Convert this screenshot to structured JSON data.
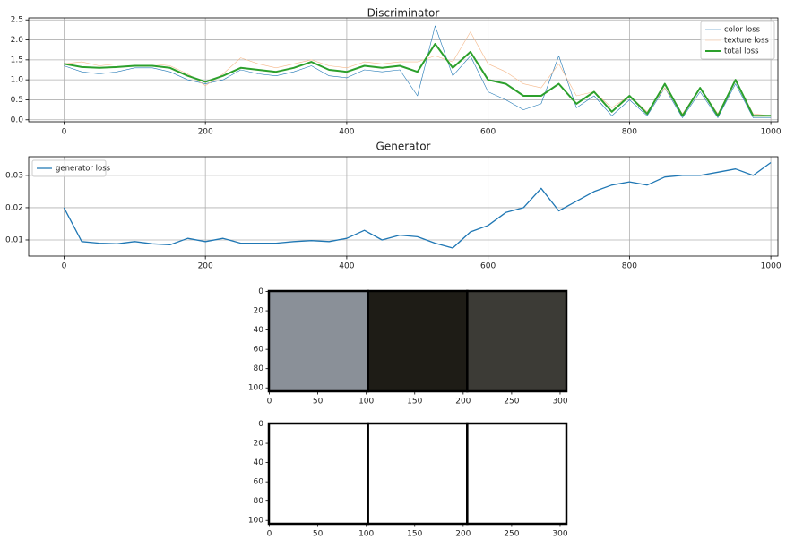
{
  "chart_data": [
    {
      "type": "line",
      "title": "Discriminator",
      "x": [
        0,
        25,
        50,
        75,
        100,
        125,
        150,
        175,
        200,
        225,
        250,
        275,
        300,
        325,
        350,
        375,
        400,
        425,
        450,
        475,
        500,
        525,
        550,
        575,
        600,
        625,
        650,
        675,
        700,
        725,
        750,
        775,
        800,
        825,
        850,
        875,
        900,
        925,
        950,
        975,
        1000
      ],
      "series": [
        {
          "name": "color loss",
          "color": "#1f77b4",
          "linewidth": 0.6,
          "values": [
            1.35,
            1.2,
            1.15,
            1.2,
            1.3,
            1.3,
            1.2,
            1.0,
            0.9,
            1.0,
            1.25,
            1.15,
            1.1,
            1.2,
            1.35,
            1.1,
            1.05,
            1.25,
            1.2,
            1.25,
            0.6,
            2.35,
            1.1,
            1.6,
            0.7,
            0.5,
            0.25,
            0.4,
            1.6,
            0.3,
            0.6,
            0.1,
            0.5,
            0.1,
            0.8,
            0.05,
            0.7,
            0.05,
            0.9,
            0.05,
            0.05
          ]
        },
        {
          "name": "texture loss",
          "color": "#f5b88a",
          "linewidth": 0.6,
          "values": [
            1.4,
            1.45,
            1.35,
            1.4,
            1.4,
            1.4,
            1.35,
            1.15,
            0.85,
            1.15,
            1.55,
            1.4,
            1.3,
            1.4,
            1.5,
            1.35,
            1.3,
            1.45,
            1.4,
            1.45,
            1.45,
            1.6,
            1.45,
            2.2,
            1.4,
            1.2,
            0.9,
            0.8,
            1.4,
            0.6,
            0.7,
            0.3,
            0.6,
            0.2,
            0.8,
            0.15,
            0.8,
            0.15,
            1.0,
            0.15,
            0.1
          ]
        },
        {
          "name": "total loss",
          "color": "#2ca02c",
          "linewidth": 2,
          "values": [
            1.4,
            1.32,
            1.3,
            1.32,
            1.35,
            1.35,
            1.3,
            1.1,
            0.95,
            1.1,
            1.3,
            1.25,
            1.2,
            1.3,
            1.45,
            1.25,
            1.2,
            1.35,
            1.3,
            1.35,
            1.2,
            1.9,
            1.3,
            1.7,
            1.0,
            0.9,
            0.6,
            0.6,
            0.9,
            0.4,
            0.7,
            0.2,
            0.6,
            0.15,
            0.9,
            0.1,
            0.8,
            0.1,
            1.0,
            0.1,
            0.1
          ]
        }
      ],
      "xlim": [
        -50,
        1010
      ],
      "ylim": [
        -0.05,
        2.55
      ],
      "xticks": [
        0,
        200,
        400,
        600,
        800,
        1000
      ],
      "yticks": [
        {
          "value": 0,
          "label": "0.0"
        },
        0.5,
        {
          "value": 1,
          "label": "1.0"
        },
        1.5,
        {
          "value": 2,
          "label": "2.0"
        },
        2.5
      ],
      "grid": true,
      "legend": "upper right"
    },
    {
      "type": "line",
      "title": "Generator",
      "x": [
        0,
        25,
        50,
        75,
        100,
        125,
        150,
        175,
        200,
        225,
        250,
        275,
        300,
        325,
        350,
        375,
        400,
        425,
        450,
        475,
        500,
        525,
        550,
        575,
        600,
        625,
        650,
        675,
        700,
        725,
        750,
        775,
        800,
        825,
        850,
        875,
        900,
        925,
        950,
        975,
        1000
      ],
      "series": [
        {
          "name": "generator loss",
          "color": "#1f77b4",
          "linewidth": 1.3,
          "values": [
            0.02,
            0.0095,
            0.009,
            0.0088,
            0.0095,
            0.0088,
            0.0085,
            0.0105,
            0.0095,
            0.0105,
            0.009,
            0.009,
            0.009,
            0.0095,
            0.0098,
            0.0095,
            0.0105,
            0.013,
            0.01,
            0.0115,
            0.011,
            0.009,
            0.0075,
            0.0125,
            0.0145,
            0.0185,
            0.02,
            0.026,
            0.019,
            0.022,
            0.025,
            0.027,
            0.028,
            0.027,
            0.0295,
            0.03,
            0.03,
            0.031,
            0.032,
            0.03,
            0.034
          ]
        }
      ],
      "xlim": [
        -50,
        1010
      ],
      "ylim": [
        0.005,
        0.0358
      ],
      "xticks": [
        0,
        200,
        400,
        600,
        800,
        1000
      ],
      "yticks": [
        0.01,
        0.02,
        0.03
      ],
      "grid": true,
      "legend": "upper left"
    },
    {
      "type": "image",
      "tile_colors": [
        "#8a9098",
        "#1e1c16",
        "#3c3b36"
      ],
      "xlim": [
        -0.5,
        306.5
      ],
      "ylim": [
        103.5,
        -0.5
      ],
      "xticks": [
        0,
        50,
        100,
        150,
        200,
        250,
        300
      ],
      "yticks": [
        0,
        20,
        40,
        60,
        80,
        100
      ],
      "grid": false
    },
    {
      "type": "image",
      "tile_colors": [
        "#ffffff",
        "#ffffff",
        "#ffffff"
      ],
      "xlim": [
        -0.5,
        306.5
      ],
      "ylim": [
        103.5,
        -0.5
      ],
      "xticks": [
        0,
        50,
        100,
        150,
        200,
        250,
        300
      ],
      "yticks": [
        0,
        20,
        40,
        60,
        80,
        100
      ],
      "grid": false
    }
  ]
}
